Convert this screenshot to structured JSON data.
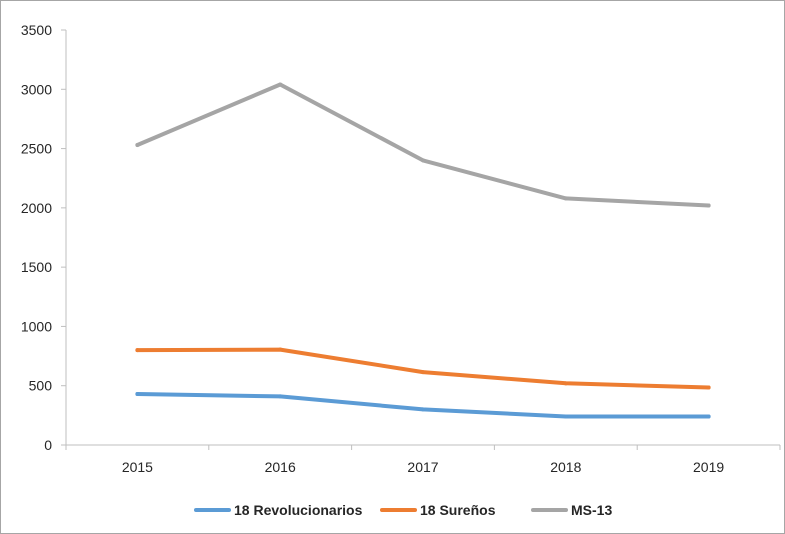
{
  "chart_data": {
    "type": "line",
    "title": "",
    "xlabel": "",
    "ylabel": "",
    "categories": [
      "2015",
      "2016",
      "2017",
      "2018",
      "2019"
    ],
    "ylim": [
      0,
      3500
    ],
    "y_ticks": [
      0,
      500,
      1000,
      1500,
      2000,
      2500,
      3000,
      3500
    ],
    "y_tick_labels": [
      "0",
      "500",
      "1000",
      "1500",
      "2000",
      "2500",
      "3000",
      "3500"
    ],
    "grid": false,
    "legend_position": "bottom",
    "series": [
      {
        "name": "18 Revolucionarios",
        "color": "#5b9bd5",
        "values": [
          430,
          410,
          300,
          240,
          240
        ]
      },
      {
        "name": "18 Sureños",
        "color": "#ed7d31",
        "values": [
          800,
          805,
          615,
          520,
          485
        ]
      },
      {
        "name": "MS-13",
        "color": "#a5a5a5",
        "values": [
          2530,
          3040,
          2400,
          2080,
          2020
        ]
      }
    ]
  }
}
